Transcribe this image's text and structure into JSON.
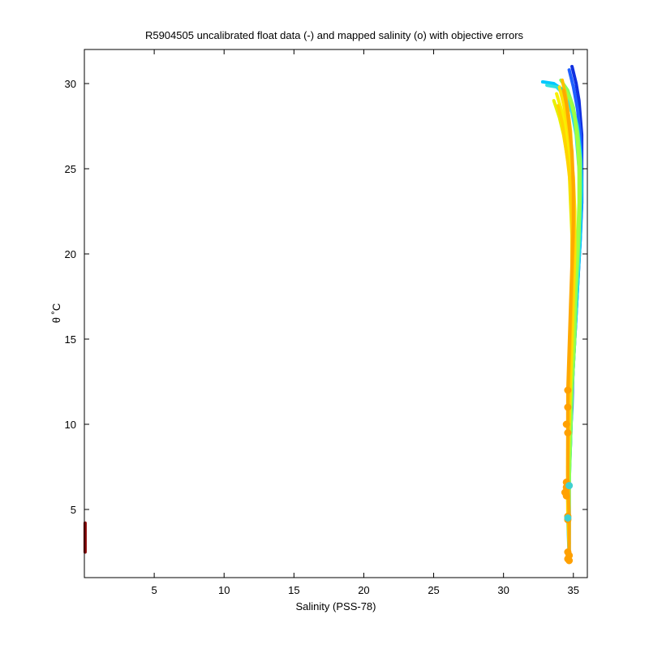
{
  "chart_data": {
    "type": "line",
    "title": "R5904505 uncalibrated float data (-) and mapped salinity (o) with objective errors",
    "xlabel": "Salinity (PSS-78)",
    "ylabel": "θ ˚C",
    "xlim": [
      0,
      36
    ],
    "ylim": [
      1,
      32
    ],
    "xticks": [
      5,
      10,
      15,
      20,
      25,
      30,
      35
    ],
    "yticks": [
      5,
      10,
      15,
      20,
      25,
      30
    ],
    "grid": false,
    "legend": "none",
    "colormap": [
      "#0000ff",
      "#0080ff",
      "#00ffff",
      "#80ff80",
      "#ffff00",
      "#ffc000",
      "#ff8000",
      "#8b0000"
    ],
    "series": [
      {
        "color": "#1030e0",
        "points": [
          [
            34.9,
            31.0
          ],
          [
            35.2,
            30.0
          ],
          [
            35.4,
            29.0
          ],
          [
            35.5,
            28.0
          ],
          [
            35.6,
            27.0
          ],
          [
            35.6,
            25.0
          ],
          [
            35.6,
            23.0
          ],
          [
            35.5,
            21.0
          ],
          [
            35.3,
            18.0
          ],
          [
            35.1,
            15.0
          ],
          [
            34.9,
            12.0
          ],
          [
            34.8,
            9.0
          ],
          [
            34.7,
            7.0
          ],
          [
            34.7,
            5.0
          ],
          [
            34.7,
            3.0
          ],
          [
            34.7,
            2.2
          ]
        ]
      },
      {
        "color": "#2060ff",
        "points": [
          [
            34.7,
            30.8
          ],
          [
            35.0,
            29.8
          ],
          [
            35.3,
            28.5
          ],
          [
            35.5,
            27.0
          ],
          [
            35.6,
            25.0
          ],
          [
            35.6,
            23.0
          ],
          [
            35.4,
            20.0
          ],
          [
            35.2,
            17.0
          ],
          [
            35.0,
            14.0
          ],
          [
            34.9,
            11.0
          ],
          [
            34.7,
            8.0
          ],
          [
            34.7,
            6.0
          ],
          [
            34.7,
            4.5
          ],
          [
            34.7,
            2.3
          ]
        ]
      },
      {
        "color": "#00c8ff",
        "points": [
          [
            32.8,
            30.1
          ],
          [
            33.6,
            30.0
          ],
          [
            34.3,
            29.6
          ],
          [
            34.9,
            28.8
          ],
          [
            35.3,
            27.5
          ],
          [
            35.5,
            26.0
          ],
          [
            35.6,
            24.0
          ],
          [
            35.5,
            21.0
          ],
          [
            35.3,
            18.0
          ],
          [
            35.1,
            15.0
          ],
          [
            34.9,
            12.0
          ],
          [
            34.8,
            9.0
          ],
          [
            34.7,
            6.5
          ],
          [
            34.6,
            4.5
          ],
          [
            34.7,
            2.2
          ]
        ]
      },
      {
        "color": "#30e0e0",
        "points": [
          [
            33.1,
            29.9
          ],
          [
            33.8,
            29.8
          ],
          [
            34.4,
            29.3
          ],
          [
            34.9,
            28.3
          ],
          [
            35.2,
            27.0
          ],
          [
            35.4,
            25.0
          ],
          [
            35.5,
            23.0
          ],
          [
            35.4,
            20.0
          ],
          [
            35.2,
            17.0
          ],
          [
            35.0,
            14.0
          ],
          [
            34.8,
            11.0
          ],
          [
            34.7,
            8.0
          ],
          [
            34.6,
            5.5
          ],
          [
            34.7,
            3.0
          ]
        ]
      },
      {
        "color": "#80ff60",
        "points": [
          [
            34.1,
            30.2
          ],
          [
            34.6,
            29.6
          ],
          [
            35.0,
            28.6
          ],
          [
            35.3,
            27.2
          ],
          [
            35.5,
            25.5
          ],
          [
            35.5,
            23.5
          ],
          [
            35.4,
            21.0
          ],
          [
            35.2,
            18.0
          ],
          [
            35.1,
            15.0
          ],
          [
            34.9,
            12.0
          ],
          [
            34.8,
            9.0
          ],
          [
            34.7,
            6.5
          ],
          [
            34.7,
            4.0
          ],
          [
            34.7,
            2.2
          ]
        ]
      },
      {
        "color": "#a0ff40",
        "points": [
          [
            34.3,
            29.8
          ],
          [
            34.8,
            29.0
          ],
          [
            35.1,
            28.0
          ],
          [
            35.3,
            26.5
          ],
          [
            35.4,
            25.0
          ],
          [
            35.4,
            23.0
          ],
          [
            35.3,
            20.5
          ],
          [
            35.1,
            17.5
          ],
          [
            35.0,
            14.5
          ],
          [
            34.8,
            11.5
          ],
          [
            34.7,
            8.5
          ],
          [
            34.7,
            6.0
          ],
          [
            34.7,
            3.5
          ]
        ]
      },
      {
        "color": "#e8f000",
        "points": [
          [
            33.6,
            29.0
          ],
          [
            34.0,
            28.0
          ],
          [
            34.3,
            27.0
          ],
          [
            34.5,
            26.0
          ],
          [
            34.7,
            25.0
          ],
          [
            34.8,
            23.0
          ],
          [
            34.9,
            21.0
          ],
          [
            34.9,
            19.0
          ],
          [
            34.9,
            17.0
          ],
          [
            34.8,
            15.0
          ],
          [
            34.8,
            13.0
          ],
          [
            34.7,
            11.0
          ],
          [
            34.6,
            9.0
          ],
          [
            34.6,
            7.0
          ],
          [
            34.6,
            5.0
          ],
          [
            34.7,
            3.0
          ]
        ]
      },
      {
        "color": "#f8f000",
        "points": [
          [
            33.8,
            29.4
          ],
          [
            34.2,
            28.3
          ],
          [
            34.5,
            27.2
          ],
          [
            34.7,
            26.0
          ],
          [
            34.9,
            24.5
          ],
          [
            35.0,
            22.5
          ],
          [
            35.0,
            20.5
          ],
          [
            35.0,
            18.5
          ],
          [
            34.9,
            16.0
          ],
          [
            34.8,
            13.5
          ],
          [
            34.7,
            11.0
          ],
          [
            34.6,
            8.5
          ],
          [
            34.6,
            6.0
          ],
          [
            34.7,
            4.0
          ]
        ]
      },
      {
        "color": "#ffe000",
        "points": [
          [
            34.0,
            29.8
          ],
          [
            34.3,
            28.8
          ],
          [
            34.6,
            27.6
          ],
          [
            34.8,
            26.2
          ],
          [
            35.0,
            24.5
          ],
          [
            35.1,
            22.5
          ],
          [
            35.1,
            20.0
          ],
          [
            35.0,
            17.5
          ],
          [
            34.9,
            15.0
          ],
          [
            34.8,
            12.5
          ],
          [
            34.7,
            10.0
          ],
          [
            34.6,
            7.5
          ],
          [
            34.6,
            5.0
          ],
          [
            34.7,
            2.5
          ]
        ]
      },
      {
        "color": "#ffd400",
        "points": [
          [
            33.9,
            28.7
          ],
          [
            34.2,
            27.7
          ],
          [
            34.4,
            26.6
          ],
          [
            34.6,
            25.4
          ],
          [
            34.8,
            24.0
          ],
          [
            34.9,
            22.0
          ],
          [
            34.9,
            20.0
          ],
          [
            34.9,
            18.0
          ],
          [
            34.8,
            15.5
          ],
          [
            34.7,
            13.0
          ],
          [
            34.7,
            10.5
          ],
          [
            34.6,
            8.0
          ],
          [
            34.6,
            5.5
          ],
          [
            34.7,
            3.0
          ]
        ]
      },
      {
        "color": "#ffc000",
        "points": [
          [
            34.2,
            30.2
          ],
          [
            34.4,
            29.5
          ],
          [
            34.6,
            28.5
          ],
          [
            34.8,
            27.2
          ],
          [
            34.9,
            25.5
          ],
          [
            35.0,
            23.5
          ],
          [
            35.0,
            21.0
          ],
          [
            34.9,
            18.5
          ],
          [
            34.8,
            16.0
          ],
          [
            34.7,
            13.5
          ],
          [
            34.6,
            11.0
          ],
          [
            34.6,
            8.5
          ],
          [
            34.6,
            6.0
          ],
          [
            34.7,
            4.5
          ],
          [
            34.7,
            2.2
          ]
        ]
      },
      {
        "color": "#ffa800",
        "points": [
          [
            34.3,
            29.6
          ],
          [
            34.5,
            28.8
          ],
          [
            34.7,
            27.5
          ],
          [
            34.9,
            26.0
          ],
          [
            35.0,
            24.0
          ],
          [
            35.0,
            22.0
          ],
          [
            34.9,
            19.5
          ],
          [
            34.8,
            17.0
          ],
          [
            34.7,
            14.5
          ],
          [
            34.6,
            12.0
          ],
          [
            34.6,
            9.5
          ],
          [
            34.6,
            7.0
          ],
          [
            34.7,
            4.5
          ],
          [
            34.7,
            2.2
          ]
        ]
      },
      {
        "color": "#8b0000",
        "points": [
          [
            0.05,
            4.2
          ],
          [
            0.05,
            2.5
          ]
        ]
      }
    ],
    "mapped_salinity_points": [
      {
        "color": "#ffa000",
        "points": [
          [
            34.5,
            6.6
          ],
          [
            34.5,
            6.3
          ],
          [
            34.4,
            6.0
          ],
          [
            34.5,
            5.8
          ],
          [
            34.6,
            4.6
          ],
          [
            34.6,
            4.4
          ],
          [
            34.6,
            2.5
          ],
          [
            34.7,
            2.3
          ],
          [
            34.6,
            2.1
          ],
          [
            34.7,
            2.0
          ],
          [
            34.6,
            12.0
          ],
          [
            34.6,
            11.0
          ],
          [
            34.5,
            10.0
          ],
          [
            34.6,
            9.5
          ]
        ]
      },
      {
        "color": "#40d0d0",
        "points": [
          [
            34.6,
            4.5
          ],
          [
            34.7,
            6.4
          ]
        ]
      }
    ]
  }
}
